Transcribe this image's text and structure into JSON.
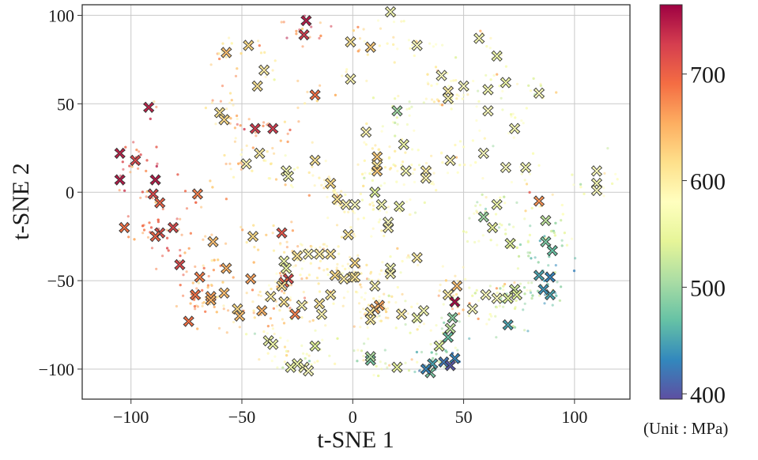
{
  "chart_data": {
    "type": "scatter",
    "title": "",
    "xlabel": "t-SNE 1",
    "ylabel": "t-SNE 2",
    "xlim": [
      -122,
      125
    ],
    "ylim": [
      -117,
      106
    ],
    "x_ticks": [
      -100,
      -50,
      0,
      50,
      100
    ],
    "y_ticks": [
      -100,
      -50,
      0,
      50,
      100
    ],
    "x_tick_labels": [
      "−100",
      "−50",
      "0",
      "50",
      "100"
    ],
    "y_tick_labels": [
      "−100",
      "−50",
      "0",
      "50",
      "100"
    ],
    "grid": true,
    "colorbar": {
      "min": 395,
      "max": 765,
      "ticks": [
        400,
        500,
        600,
        700
      ],
      "tick_labels": [
        "400",
        "500",
        "600",
        "700"
      ],
      "colormap": "Spectral_r",
      "colormap_stops": [
        "#5e4fa2",
        "#3288bd",
        "#66c2a5",
        "#abdda4",
        "#e6f598",
        "#ffffbf",
        "#fee08b",
        "#fdae61",
        "#f46d43",
        "#d53e4f",
        "#9e0142"
      ],
      "unit_label": "(Unit : MPa)"
    },
    "background_points": {
      "description_free_marker": "small dot",
      "approx_count": 1800,
      "extent_x": [
        -107,
        118
      ],
      "extent_y": [
        -105,
        104
      ]
    },
    "highlighted_series": {
      "marker": "x",
      "points": [
        {
          "x": -21,
          "y": 97,
          "v": 750
        },
        {
          "x": -22,
          "y": 89,
          "v": 730
        },
        {
          "x": 17,
          "y": 102,
          "v": 570
        },
        {
          "x": -1,
          "y": 85,
          "v": 610
        },
        {
          "x": 8,
          "y": 82,
          "v": 630
        },
        {
          "x": -47,
          "y": 83,
          "v": 620
        },
        {
          "x": -57,
          "y": 79,
          "v": 640
        },
        {
          "x": 29,
          "y": 83,
          "v": 580
        },
        {
          "x": 57,
          "y": 87,
          "v": 570
        },
        {
          "x": 65,
          "y": 77,
          "v": 560
        },
        {
          "x": -40,
          "y": 69,
          "v": 600
        },
        {
          "x": -43,
          "y": 60,
          "v": 610
        },
        {
          "x": -1,
          "y": 64,
          "v": 590
        },
        {
          "x": 40,
          "y": 66,
          "v": 580
        },
        {
          "x": 50,
          "y": 60,
          "v": 580
        },
        {
          "x": 43,
          "y": 57,
          "v": 600
        },
        {
          "x": 61,
          "y": 58,
          "v": 570
        },
        {
          "x": 69,
          "y": 62,
          "v": 560
        },
        {
          "x": 84,
          "y": 56,
          "v": 580
        },
        {
          "x": 43,
          "y": 53,
          "v": 590
        },
        {
          "x": -17,
          "y": 55,
          "v": 690
        },
        {
          "x": -92,
          "y": 48,
          "v": 745
        },
        {
          "x": -60,
          "y": 45,
          "v": 610
        },
        {
          "x": -58,
          "y": 41,
          "v": 620
        },
        {
          "x": 20,
          "y": 46,
          "v": 500
        },
        {
          "x": 61,
          "y": 46,
          "v": 580
        },
        {
          "x": -44,
          "y": 36,
          "v": 730
        },
        {
          "x": -36,
          "y": 36,
          "v": 730
        },
        {
          "x": 6,
          "y": 34,
          "v": 590
        },
        {
          "x": 73,
          "y": 36,
          "v": 570
        },
        {
          "x": 23,
          "y": 27,
          "v": 560
        },
        {
          "x": -42,
          "y": 22,
          "v": 600
        },
        {
          "x": 11,
          "y": 20,
          "v": 630
        },
        {
          "x": -105,
          "y": 22,
          "v": 745
        },
        {
          "x": -98,
          "y": 18,
          "v": 720
        },
        {
          "x": 44,
          "y": 18,
          "v": 590
        },
        {
          "x": 59,
          "y": 22,
          "v": 580
        },
        {
          "x": -48,
          "y": 16,
          "v": 590
        },
        {
          "x": -17,
          "y": 18,
          "v": 610
        },
        {
          "x": 11,
          "y": 15,
          "v": 610
        },
        {
          "x": 69,
          "y": 14,
          "v": 580
        },
        {
          "x": 78,
          "y": 14,
          "v": 570
        },
        {
          "x": -30,
          "y": 12,
          "v": 570
        },
        {
          "x": -29,
          "y": 9,
          "v": 570
        },
        {
          "x": 11,
          "y": 12,
          "v": 630
        },
        {
          "x": 24,
          "y": 12,
          "v": 570
        },
        {
          "x": 33,
          "y": 12,
          "v": 600
        },
        {
          "x": 33,
          "y": 8,
          "v": 590
        },
        {
          "x": 110,
          "y": 12,
          "v": 580
        },
        {
          "x": 110,
          "y": 5,
          "v": 570
        },
        {
          "x": -105,
          "y": 7,
          "v": 750
        },
        {
          "x": -89,
          "y": 7,
          "v": 750
        },
        {
          "x": -10,
          "y": 5,
          "v": 620
        },
        {
          "x": 110,
          "y": 1,
          "v": 580
        },
        {
          "x": -90,
          "y": -1,
          "v": 720
        },
        {
          "x": -70,
          "y": -1,
          "v": 680
        },
        {
          "x": 10,
          "y": 0,
          "v": 540
        },
        {
          "x": -7,
          "y": -4,
          "v": 610
        },
        {
          "x": -3,
          "y": -7,
          "v": 590
        },
        {
          "x": 1,
          "y": -7,
          "v": 580
        },
        {
          "x": 13,
          "y": -7,
          "v": 570
        },
        {
          "x": 21,
          "y": -8,
          "v": 560
        },
        {
          "x": 65,
          "y": -7,
          "v": 560
        },
        {
          "x": 84,
          "y": -5,
          "v": 670
        },
        {
          "x": -87,
          "y": -6,
          "v": 700
        },
        {
          "x": -103,
          "y": -20,
          "v": 690
        },
        {
          "x": -81,
          "y": -20,
          "v": 720
        },
        {
          "x": -87,
          "y": -23,
          "v": 715
        },
        {
          "x": -89,
          "y": -25,
          "v": 700
        },
        {
          "x": 59,
          "y": -14,
          "v": 500
        },
        {
          "x": 87,
          "y": -16,
          "v": 520
        },
        {
          "x": 16,
          "y": -17,
          "v": 580
        },
        {
          "x": -2,
          "y": -24,
          "v": 610
        },
        {
          "x": -32,
          "y": -23,
          "v": 710
        },
        {
          "x": 63,
          "y": -20,
          "v": 550
        },
        {
          "x": 16,
          "y": -20,
          "v": 590
        },
        {
          "x": 87,
          "y": -28,
          "v": 480
        },
        {
          "x": 71,
          "y": -29,
          "v": 540
        },
        {
          "x": -63,
          "y": -28,
          "v": 640
        },
        {
          "x": -45,
          "y": -25,
          "v": 620
        },
        {
          "x": 90,
          "y": -33,
          "v": 470
        },
        {
          "x": -20,
          "y": -35,
          "v": 590
        },
        {
          "x": -15,
          "y": -35,
          "v": 600
        },
        {
          "x": -10,
          "y": -35,
          "v": 610
        },
        {
          "x": -25,
          "y": -36,
          "v": 610
        },
        {
          "x": 29,
          "y": -37,
          "v": 600
        },
        {
          "x": 1,
          "y": -40,
          "v": 620
        },
        {
          "x": -78,
          "y": -41,
          "v": 720
        },
        {
          "x": -57,
          "y": -43,
          "v": 650
        },
        {
          "x": -31,
          "y": -39,
          "v": 560
        },
        {
          "x": -30,
          "y": -43,
          "v": 550
        },
        {
          "x": 17,
          "y": -43,
          "v": 570
        },
        {
          "x": -69,
          "y": -48,
          "v": 680
        },
        {
          "x": 0,
          "y": -48,
          "v": 600
        },
        {
          "x": -46,
          "y": -49,
          "v": 660
        },
        {
          "x": -8,
          "y": -47,
          "v": 620
        },
        {
          "x": 1,
          "y": -48,
          "v": 610
        },
        {
          "x": 17,
          "y": -46,
          "v": 590
        },
        {
          "x": -29,
          "y": -49,
          "v": 720
        },
        {
          "x": -4,
          "y": -49,
          "v": 600
        },
        {
          "x": 84,
          "y": -47,
          "v": 450
        },
        {
          "x": 89,
          "y": -48,
          "v": 430
        },
        {
          "x": -31,
          "y": -51,
          "v": 700
        },
        {
          "x": -32,
          "y": -53,
          "v": 610
        },
        {
          "x": 10,
          "y": -53,
          "v": 590
        },
        {
          "x": 47,
          "y": -53,
          "v": 640
        },
        {
          "x": -71,
          "y": -58,
          "v": 690
        },
        {
          "x": -64,
          "y": -59,
          "v": 660
        },
        {
          "x": -64,
          "y": -61,
          "v": 650
        },
        {
          "x": -58,
          "y": -57,
          "v": 640
        },
        {
          "x": 73,
          "y": -55,
          "v": 530
        },
        {
          "x": 89,
          "y": -58,
          "v": 450
        },
        {
          "x": -37,
          "y": -59,
          "v": 600
        },
        {
          "x": -10,
          "y": -58,
          "v": 600
        },
        {
          "x": 74,
          "y": -58,
          "v": 540
        },
        {
          "x": 86,
          "y": -55,
          "v": 440
        },
        {
          "x": 60,
          "y": -58,
          "v": 580
        },
        {
          "x": 65,
          "y": -60,
          "v": 580
        },
        {
          "x": 70,
          "y": -60,
          "v": 540
        },
        {
          "x": 43,
          "y": -58,
          "v": 600
        },
        {
          "x": 46,
          "y": -62,
          "v": 760
        },
        {
          "x": -31,
          "y": -62,
          "v": 610
        },
        {
          "x": -15,
          "y": -63,
          "v": 610
        },
        {
          "x": 12,
          "y": -64,
          "v": 660
        },
        {
          "x": 10,
          "y": -66,
          "v": 650
        },
        {
          "x": -23,
          "y": -64,
          "v": 590
        },
        {
          "x": -52,
          "y": -66,
          "v": 620
        },
        {
          "x": -41,
          "y": -67,
          "v": 650
        },
        {
          "x": -51,
          "y": -70,
          "v": 640
        },
        {
          "x": -26,
          "y": -69,
          "v": 680
        },
        {
          "x": -14,
          "y": -69,
          "v": 590
        },
        {
          "x": 8,
          "y": -68,
          "v": 610
        },
        {
          "x": 22,
          "y": -69,
          "v": 600
        },
        {
          "x": 29,
          "y": -71,
          "v": 560
        },
        {
          "x": 32,
          "y": -67,
          "v": 570
        },
        {
          "x": 54,
          "y": -66,
          "v": 580
        },
        {
          "x": 8,
          "y": -72,
          "v": 600
        },
        {
          "x": -74,
          "y": -73,
          "v": 690
        },
        {
          "x": 45,
          "y": -71,
          "v": 490
        },
        {
          "x": 70,
          "y": -75,
          "v": 450
        },
        {
          "x": 44,
          "y": -77,
          "v": 520
        },
        {
          "x": 43,
          "y": -82,
          "v": 470
        },
        {
          "x": -38,
          "y": -84,
          "v": 560
        },
        {
          "x": -36,
          "y": -86,
          "v": 560
        },
        {
          "x": -17,
          "y": -87,
          "v": 540
        },
        {
          "x": 39,
          "y": -87,
          "v": 540
        },
        {
          "x": 8,
          "y": -95,
          "v": 480
        },
        {
          "x": 8,
          "y": -93,
          "v": 510
        },
        {
          "x": -25,
          "y": -97,
          "v": 560
        },
        {
          "x": -22,
          "y": -99,
          "v": 570
        },
        {
          "x": -28,
          "y": -99,
          "v": 560
        },
        {
          "x": 36,
          "y": -97,
          "v": 450
        },
        {
          "x": 41,
          "y": -96,
          "v": 420
        },
        {
          "x": 46,
          "y": -94,
          "v": 430
        },
        {
          "x": 44,
          "y": -98,
          "v": 400
        },
        {
          "x": 20,
          "y": -99,
          "v": 550
        },
        {
          "x": 35,
          "y": -102,
          "v": 480
        },
        {
          "x": -20,
          "y": -101,
          "v": 580
        },
        {
          "x": 33,
          "y": -100,
          "v": 430
        }
      ]
    }
  }
}
